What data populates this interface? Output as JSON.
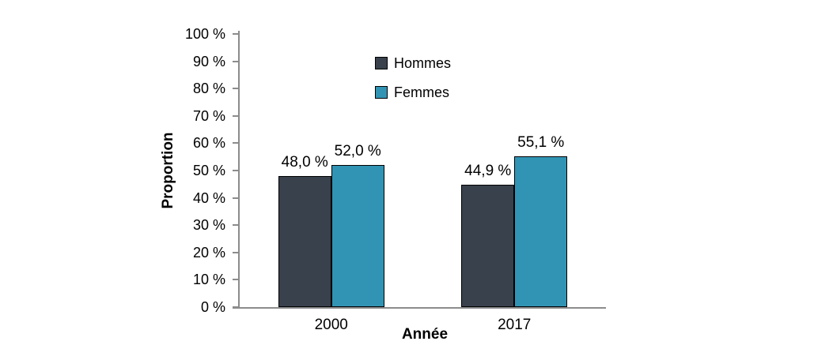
{
  "chart_data": {
    "type": "bar",
    "title": "",
    "xlabel": "Année",
    "ylabel": "Proportion",
    "categories": [
      "2000",
      "2017"
    ],
    "series": [
      {
        "name": "Hommes",
        "color": "#38414C",
        "values": [
          48.0,
          44.9
        ],
        "labels": [
          "48,0 %",
          "44,9 %"
        ]
      },
      {
        "name": "Femmes",
        "color": "#3194B4",
        "values": [
          52.0,
          55.1
        ],
        "labels": [
          "52,0 %",
          "55,1 %"
        ]
      }
    ],
    "ylim": [
      0,
      100
    ],
    "ytick_step": 10,
    "ytick_labels": [
      "0 %",
      "10 %",
      "20 %",
      "30 %",
      "40 %",
      "50 %",
      "60 %",
      "70 %",
      "80 %",
      "90 %",
      "100 %"
    ],
    "grid": false,
    "legend_position": "top-center-inside",
    "axis_color": "#8C8C8C",
    "bar_border_color": "#000000",
    "background_color": "#FFFFFF"
  }
}
